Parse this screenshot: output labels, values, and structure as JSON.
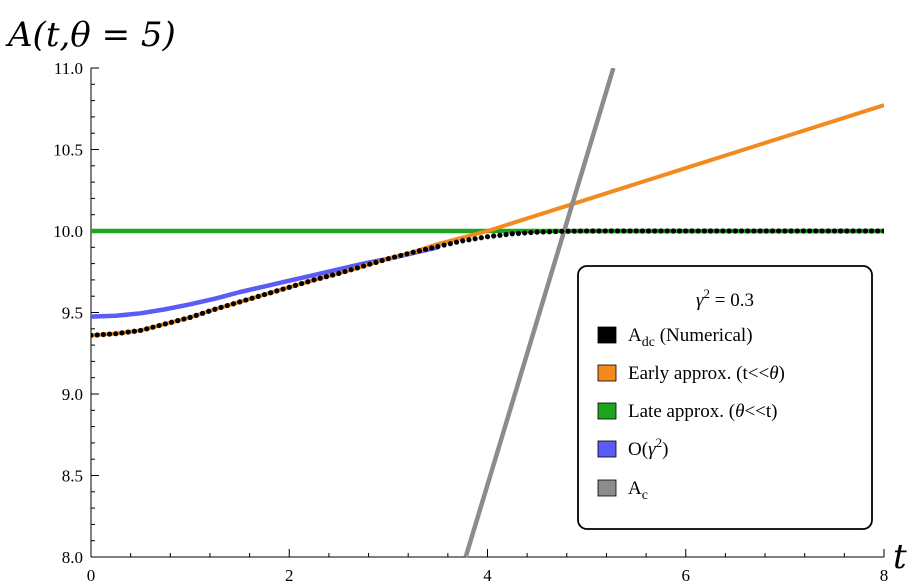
{
  "chart_data": {
    "type": "line",
    "title": "A(t,θ = 5)",
    "xlabel": "t",
    "ylabel": "A(t,θ = 5)",
    "xlim": [
      0,
      8
    ],
    "ylim": [
      8.0,
      11.0
    ],
    "x_ticks": [
      0,
      2,
      4,
      6,
      8
    ],
    "x_tick_labels": [
      "0",
      "2",
      "4",
      "6",
      "8"
    ],
    "y_ticks": [
      8.0,
      8.5,
      9.0,
      9.5,
      10.0,
      10.5,
      11.0
    ],
    "y_tick_labels": [
      "8.0",
      "8.5",
      "9.0",
      "9.5",
      "10.0",
      "10.5",
      "11.0"
    ],
    "grid": false,
    "legend": {
      "title": "γ² = 0.3",
      "title_parts": [
        "γ",
        "2",
        " = 0.3"
      ],
      "placement": "lower-right"
    },
    "series": [
      {
        "name": "A_dc (Numerical)",
        "label_parts": [
          "A",
          "dc",
          " (Numerical)"
        ],
        "color": "#000000",
        "style": "dotted",
        "x": [
          0,
          0.25,
          0.5,
          0.75,
          1.0,
          1.25,
          1.5,
          1.75,
          2.0,
          2.25,
          2.5,
          2.75,
          3.0,
          3.25,
          3.5,
          3.75,
          4.0,
          4.25,
          4.5,
          4.75,
          5.0,
          5.5,
          6.0,
          6.5,
          7.0,
          7.5,
          8.0
        ],
        "y": [
          9.36,
          9.37,
          9.39,
          9.43,
          9.47,
          9.52,
          9.565,
          9.61,
          9.655,
          9.7,
          9.74,
          9.785,
          9.83,
          9.87,
          9.905,
          9.94,
          9.965,
          9.983,
          9.993,
          9.998,
          10.0,
          10.0,
          10.0,
          10.0,
          10.0,
          10.0,
          10.0
        ]
      },
      {
        "name": "Early approx. (t<<θ)",
        "label_parts": [
          "Early approx. (t<<",
          "θ",
          ")"
        ],
        "color": "#f28a1e",
        "style": "solid",
        "x": [
          0,
          0.25,
          0.5,
          0.75,
          1.0,
          1.25,
          1.5,
          1.75,
          2.0,
          2.25,
          2.5,
          2.75,
          3.0,
          3.25,
          3.5,
          4.0,
          5.0,
          6.0,
          7.0,
          8.0
        ],
        "y": [
          9.36,
          9.37,
          9.39,
          9.43,
          9.47,
          9.52,
          9.565,
          9.61,
          9.655,
          9.7,
          9.74,
          9.785,
          9.83,
          9.87,
          9.92,
          10.0,
          10.193,
          10.386,
          10.579,
          10.772
        ]
      },
      {
        "name": "Late approx. (θ<<t)",
        "label_parts": [
          "Late approx. (",
          "θ",
          "<<t)"
        ],
        "color": "#1ea51e",
        "style": "solid",
        "x": [
          0,
          8
        ],
        "y": [
          10.0,
          10.0
        ]
      },
      {
        "name": "O(γ²)",
        "label_parts": [
          "O(",
          "γ",
          "2",
          ")"
        ],
        "color": "#5b5bf5",
        "style": "solid",
        "x": [
          0,
          0.25,
          0.5,
          0.75,
          1.0,
          1.25,
          1.5,
          1.75,
          2.0,
          2.25,
          2.5,
          2.75,
          3.0,
          3.25,
          3.5
        ],
        "y": [
          9.475,
          9.48,
          9.495,
          9.52,
          9.55,
          9.585,
          9.625,
          9.66,
          9.695,
          9.73,
          9.765,
          9.8,
          9.83,
          9.865,
          9.9
        ]
      },
      {
        "name": "A_c",
        "label_parts": [
          "A",
          "c",
          ""
        ],
        "color": "#8c8c8c",
        "style": "solid",
        "x": [
          3.78,
          5.27
        ],
        "y": [
          8.0,
          11.0
        ]
      }
    ]
  }
}
